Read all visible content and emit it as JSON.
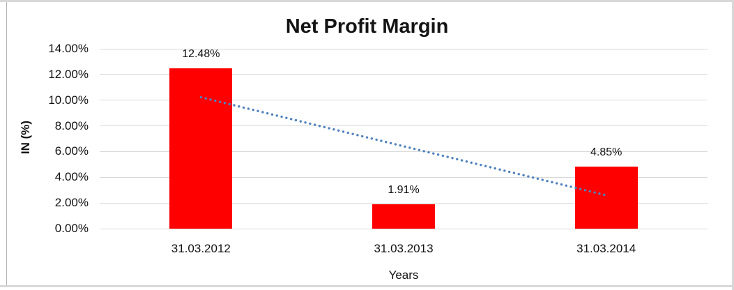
{
  "chart_data": {
    "type": "bar",
    "title": "Net Profit Margin",
    "xlabel": "Years",
    "ylabel": "IN (%)",
    "categories": [
      "31.03.2012",
      "31.03.2013",
      "31.03.2014"
    ],
    "series": [
      {
        "name": "Net Profit Margin",
        "values": [
          12.48,
          1.91,
          4.85
        ]
      }
    ],
    "data_labels": [
      "12.48%",
      "1.91%",
      "4.85%"
    ],
    "ylim": [
      0,
      14
    ],
    "ytick_step": 2,
    "yticks": [
      "0.00%",
      "2.00%",
      "4.00%",
      "6.00%",
      "8.00%",
      "10.00%",
      "12.00%",
      "14.00%"
    ],
    "grid": true,
    "legend": "none",
    "bar_color": "#ff0000",
    "gridline_color": "#d9d9d9",
    "trendline": {
      "type": "linear",
      "style": "dotted",
      "color": "#4f81bd"
    }
  }
}
